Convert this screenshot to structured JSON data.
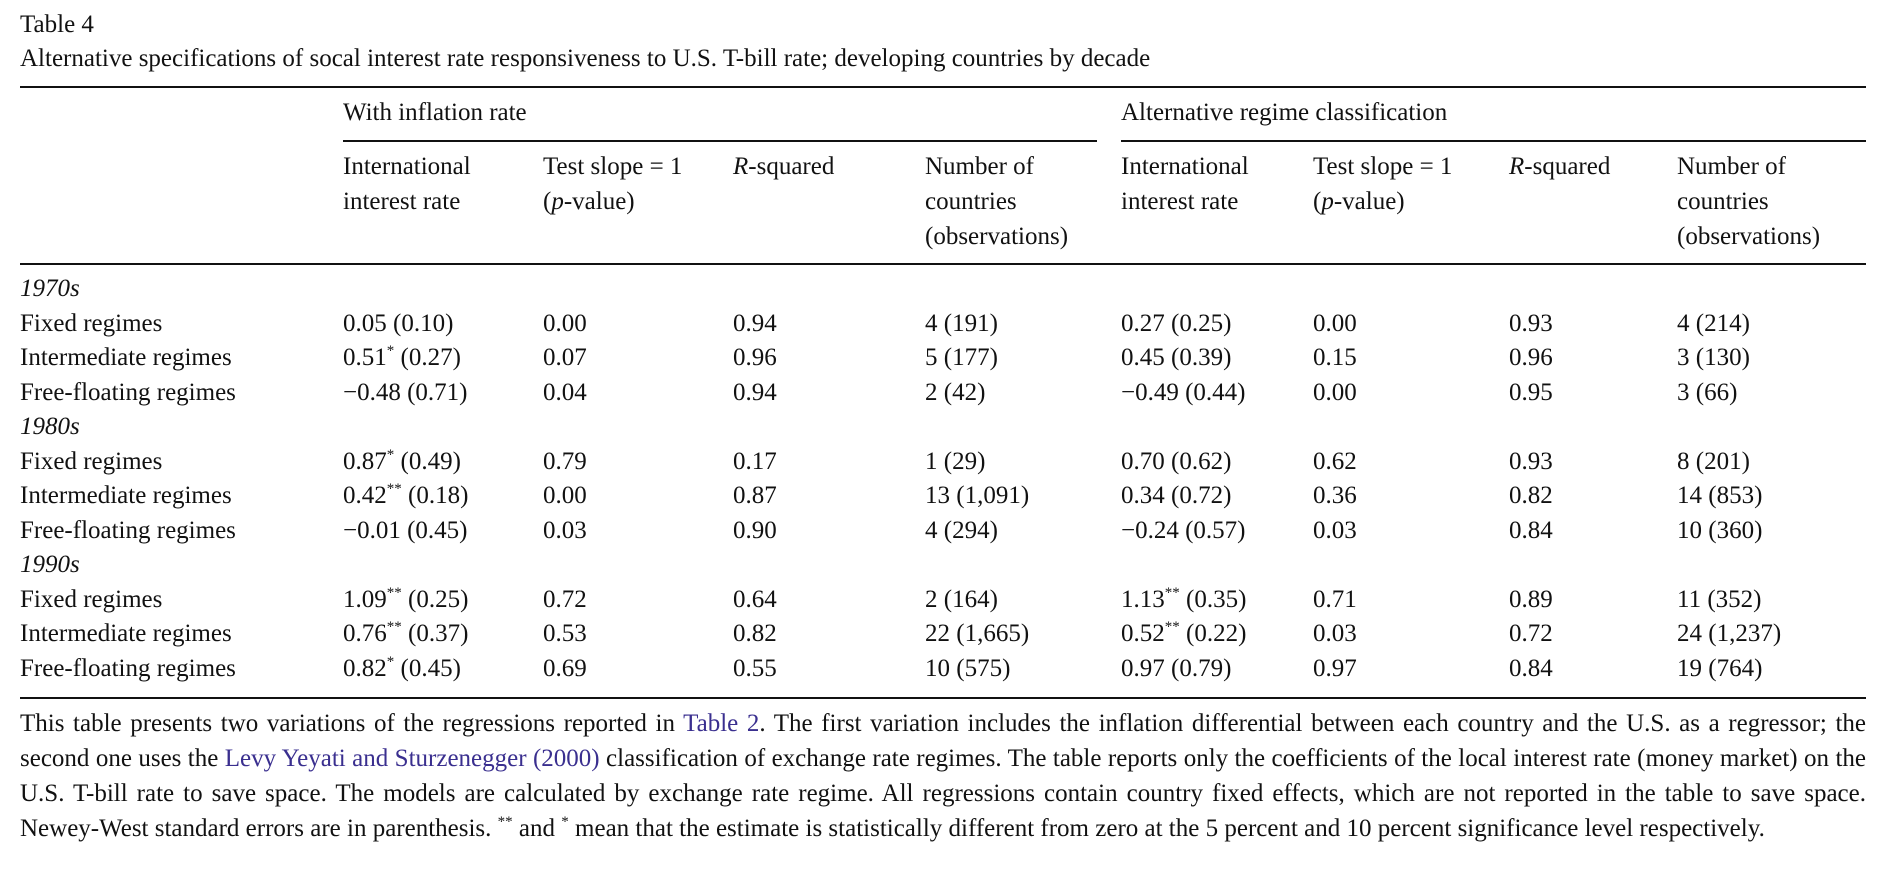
{
  "table_label": "Table 4",
  "caption": "Alternative specifications of socal interest rate responsiveness to U.S. T-bill rate; developing countries by decade",
  "group_headers": [
    "With inflation rate",
    "Alternative regime classification"
  ],
  "column_headers": {
    "intl_rate": [
      "International",
      "interest rate"
    ],
    "test_slope": [
      "Test  slope = 1",
      "p",
      "-value)"
    ],
    "rsquared": [
      "R",
      "-squared"
    ],
    "num_countries": [
      "Number of",
      "countries",
      "(observations)"
    ]
  },
  "decades": [
    {
      "label": "1970s",
      "rows": [
        {
          "name": "Fixed regimes",
          "a_coef": "0.05",
          "a_sig": "",
          "a_se": "(0.10)",
          "a_test": "0.00",
          "a_r2": "0.94",
          "a_n": "4 (191)",
          "b_coef": "0.27",
          "b_sig": "",
          "b_se": "(0.25)",
          "b_test": "0.00",
          "b_r2": "0.93",
          "b_n": "4 (214)"
        },
        {
          "name": "Intermediate regimes",
          "a_coef": "0.51",
          "a_sig": "*",
          "a_se": "(0.27)",
          "a_test": "0.07",
          "a_r2": "0.96",
          "a_n": "5 (177)",
          "b_coef": "0.45",
          "b_sig": "",
          "b_se": "(0.39)",
          "b_test": "0.15",
          "b_r2": "0.96",
          "b_n": "3 (130)"
        },
        {
          "name": "Free-floating regimes",
          "a_coef": "−0.48",
          "a_sig": "",
          "a_se": "(0.71)",
          "a_test": "0.04",
          "a_r2": "0.94",
          "a_n": "2 (42)",
          "b_coef": "−0.49",
          "b_sig": "",
          "b_se": "(0.44)",
          "b_test": "0.00",
          "b_r2": "0.95",
          "b_n": "3 (66)"
        }
      ]
    },
    {
      "label": "1980s",
      "rows": [
        {
          "name": "Fixed regimes",
          "a_coef": "0.87",
          "a_sig": "*",
          "a_se": "(0.49)",
          "a_test": "0.79",
          "a_r2": "0.17",
          "a_n": "1 (29)",
          "b_coef": "0.70",
          "b_sig": "",
          "b_se": "(0.62)",
          "b_test": "0.62",
          "b_r2": "0.93",
          "b_n": "8 (201)"
        },
        {
          "name": "Intermediate regimes",
          "a_coef": "0.42",
          "a_sig": "**",
          "a_se": "(0.18)",
          "a_test": "0.00",
          "a_r2": "0.87",
          "a_n": "13 (1,091)",
          "b_coef": "0.34",
          "b_sig": "",
          "b_se": "(0.72)",
          "b_test": "0.36",
          "b_r2": "0.82",
          "b_n": "14 (853)"
        },
        {
          "name": "Free-floating regimes",
          "a_coef": "−0.01",
          "a_sig": "",
          "a_se": "(0.45)",
          "a_test": "0.03",
          "a_r2": "0.90",
          "a_n": "4 (294)",
          "b_coef": "−0.24",
          "b_sig": "",
          "b_se": "(0.57)",
          "b_test": "0.03",
          "b_r2": "0.84",
          "b_n": "10 (360)"
        }
      ]
    },
    {
      "label": "1990s",
      "rows": [
        {
          "name": "Fixed regimes",
          "a_coef": "1.09",
          "a_sig": "**",
          "a_se": "(0.25)",
          "a_test": "0.72",
          "a_r2": "0.64",
          "a_n": "2 (164)",
          "b_coef": "1.13",
          "b_sig": "**",
          "b_se": "(0.35)",
          "b_test": "0.71",
          "b_r2": "0.89",
          "b_n": "11 (352)"
        },
        {
          "name": "Intermediate regimes",
          "a_coef": "0.76",
          "a_sig": "**",
          "a_se": "(0.37)",
          "a_test": "0.53",
          "a_r2": "0.82",
          "a_n": "22 (1,665)",
          "b_coef": "0.52",
          "b_sig": "**",
          "b_se": "(0.22)",
          "b_test": "0.03",
          "b_r2": "0.72",
          "b_n": "24 (1,237)"
        },
        {
          "name": "Free-floating regimes",
          "a_coef": "0.82",
          "a_sig": "*",
          "a_se": "(0.45)",
          "a_test": "0.69",
          "a_r2": "0.55",
          "a_n": "10 (575)",
          "b_coef": "0.97",
          "b_sig": "",
          "b_se": "(0.79)",
          "b_test": "0.97",
          "b_r2": "0.84",
          "b_n": "19 (764)"
        }
      ]
    }
  ],
  "footnote": {
    "p1": "This table presents two variations of the regressions reported in ",
    "link1": "Table 2",
    "p2": ". The first variation includes the inflation differential between each country and the U.S. as a regressor; the second one uses the ",
    "link2": "Levy Yeyati and Sturzenegger (2000)",
    "p3": " classification of exchange rate regimes. The table reports only the coefficients of the local interest rate (money market) on the U.S. T-bill rate to save space. The models are calculated by exchange rate regime. All regressions contain country fixed effects, which are not reported in the table to save space. Newey-West standard errors are in parenthesis. ",
    "sig2": "**",
    "p4": " and ",
    "sig1": "*",
    "p5": " mean that the estimate is statistically different from zero at the 5 percent and 10 percent significance level respectively."
  },
  "colors": {
    "text": "#111111",
    "link": "#3a2f8f"
  }
}
